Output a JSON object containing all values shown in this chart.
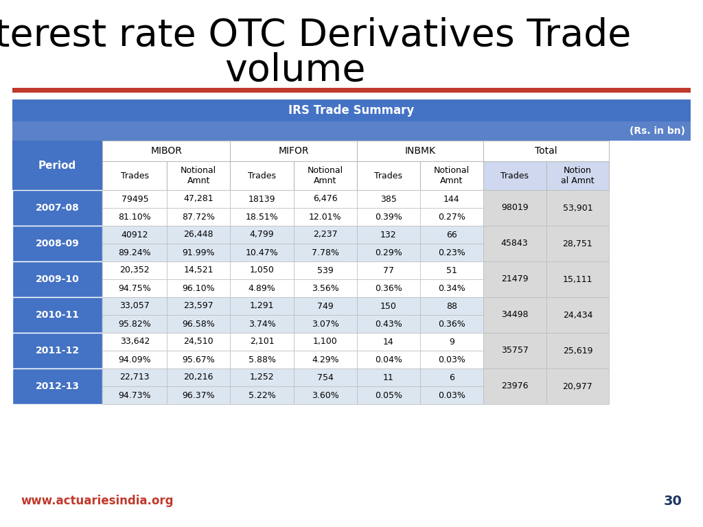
{
  "title_line1": "Interest rate OTC Derivatives Trade",
  "title_line2": "volume",
  "table_title": "IRS Trade Summary",
  "currency_note": "(Rs. in bn)",
  "period_col": "Period",
  "data": [
    {
      "period": "2007-08",
      "mibor_trades": "79495",
      "mibor_trades_pct": "81.10%",
      "mibor_notional": "47,281",
      "mibor_notional_pct": "87.72%",
      "mifor_trades": "18139",
      "mifor_trades_pct": "18.51%",
      "mifor_notional": "6,476",
      "mifor_notional_pct": "12.01%",
      "inbmk_trades": "385",
      "inbmk_trades_pct": "0.39%",
      "inbmk_notional": "144",
      "inbmk_notional_pct": "0.27%",
      "total_trades": "98019",
      "total_notional": "53,901"
    },
    {
      "period": "2008-09",
      "mibor_trades": "40912",
      "mibor_trades_pct": "89.24%",
      "mibor_notional": "26,448",
      "mibor_notional_pct": "91.99%",
      "mifor_trades": "4,799",
      "mifor_trades_pct": "10.47%",
      "mifor_notional": "2,237",
      "mifor_notional_pct": "7.78%",
      "inbmk_trades": "132",
      "inbmk_trades_pct": "0.29%",
      "inbmk_notional": "66",
      "inbmk_notional_pct": "0.23%",
      "total_trades": "45843",
      "total_notional": "28,751"
    },
    {
      "period": "2009-10",
      "mibor_trades": "20,352",
      "mibor_trades_pct": "94.75%",
      "mibor_notional": "14,521",
      "mibor_notional_pct": "96.10%",
      "mifor_trades": "1,050",
      "mifor_trades_pct": "4.89%",
      "mifor_notional": "539",
      "mifor_notional_pct": "3.56%",
      "inbmk_trades": "77",
      "inbmk_trades_pct": "0.36%",
      "inbmk_notional": "51",
      "inbmk_notional_pct": "0.34%",
      "total_trades": "21479",
      "total_notional": "15,111"
    },
    {
      "period": "2010-11",
      "mibor_trades": "33,057",
      "mibor_trades_pct": "95.82%",
      "mibor_notional": "23,597",
      "mibor_notional_pct": "96.58%",
      "mifor_trades": "1,291",
      "mifor_trades_pct": "3.74%",
      "mifor_notional": "749",
      "mifor_notional_pct": "3.07%",
      "inbmk_trades": "150",
      "inbmk_trades_pct": "0.43%",
      "inbmk_notional": "88",
      "inbmk_notional_pct": "0.36%",
      "total_trades": "34498",
      "total_notional": "24,434"
    },
    {
      "period": "2011-12",
      "mibor_trades": "33,642",
      "mibor_trades_pct": "94.09%",
      "mibor_notional": "24,510",
      "mibor_notional_pct": "95.67%",
      "mifor_trades": "2,101",
      "mifor_trades_pct": "5.88%",
      "mifor_notional": "1,100",
      "mifor_notional_pct": "4.29%",
      "inbmk_trades": "14",
      "inbmk_trades_pct": "0.04%",
      "inbmk_notional": "9",
      "inbmk_notional_pct": "0.03%",
      "total_trades": "35757",
      "total_notional": "25,619"
    },
    {
      "period": "2012-13",
      "mibor_trades": "22,713",
      "mibor_trades_pct": "94.73%",
      "mibor_notional": "20,216",
      "mibor_notional_pct": "96.37%",
      "mifor_trades": "1,252",
      "mifor_trades_pct": "5.22%",
      "mifor_notional": "754",
      "mifor_notional_pct": "3.60%",
      "inbmk_trades": "11",
      "inbmk_trades_pct": "0.05%",
      "inbmk_notional": "6",
      "inbmk_notional_pct": "0.03%",
      "total_trades": "23976",
      "total_notional": "20,977"
    }
  ],
  "header_bg": "#4472C4",
  "header2_bg": "#5B82C8",
  "period_bg": "#4472C4",
  "row_bg_white": "#FFFFFF",
  "row_bg_light": "#DCE6F1",
  "total_col_bg": "#D0D8EF",
  "data_total_bg": "#D9D9D9",
  "red_line_color": "#C0392B",
  "website_text": "www.actuariesindia.org",
  "website_color": "#C0392B",
  "page_num": "30",
  "page_num_color": "#1F3864",
  "col_starts": [
    0.0,
    0.133,
    0.228,
    0.321,
    0.415,
    0.508,
    0.601,
    0.694,
    0.787,
    0.88
  ],
  "col_ends": [
    0.133,
    0.228,
    0.321,
    0.415,
    0.508,
    0.601,
    0.694,
    0.787,
    0.88,
    1.0
  ]
}
